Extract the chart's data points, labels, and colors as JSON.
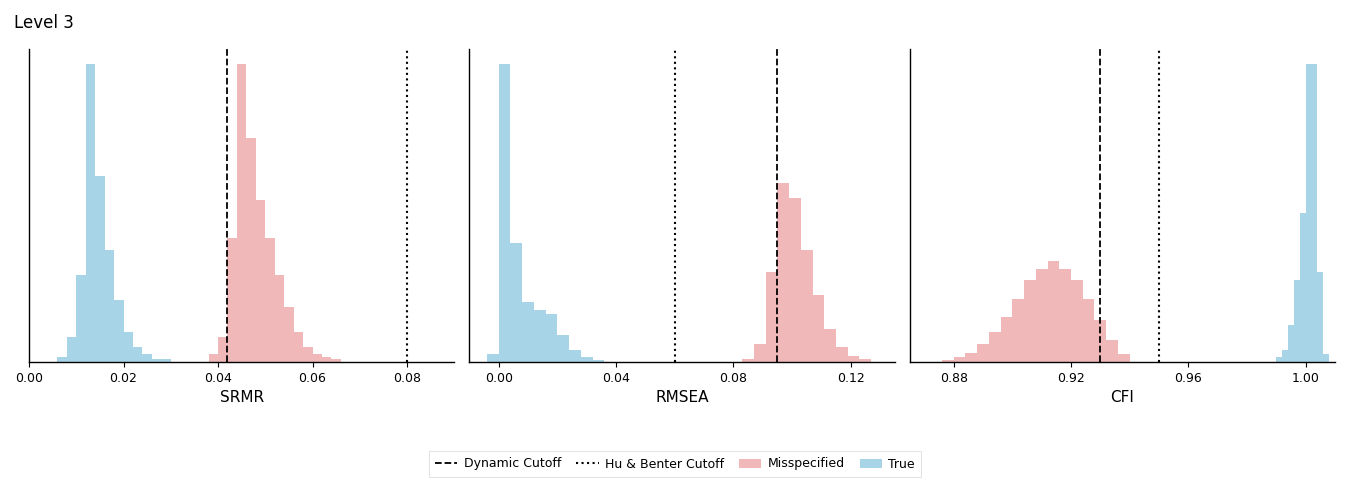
{
  "title": "Level 3",
  "panels": [
    {
      "xlabel": "SRMR",
      "xlim": [
        0.0,
        0.09
      ],
      "xticks": [
        0.0,
        0.02,
        0.04,
        0.06,
        0.08
      ],
      "xticklabels": [
        "0.00",
        "0.02",
        "0.04",
        "0.06",
        "0.08"
      ],
      "dashed_line": 0.042,
      "dotted_line": 0.08,
      "true_bins": [
        0.006,
        0.008,
        0.01,
        0.012,
        0.014,
        0.016,
        0.018,
        0.02,
        0.022,
        0.024,
        0.026,
        0.028,
        0.03
      ],
      "true_heights": [
        2,
        10,
        35,
        120,
        75,
        45,
        25,
        12,
        6,
        3,
        1,
        1,
        0
      ],
      "misspec_bins": [
        0.038,
        0.04,
        0.042,
        0.044,
        0.046,
        0.048,
        0.05,
        0.052,
        0.054,
        0.056,
        0.058,
        0.06,
        0.062,
        0.064,
        0.066
      ],
      "misspec_heights": [
        3,
        10,
        50,
        120,
        90,
        65,
        50,
        35,
        22,
        12,
        6,
        3,
        2,
        1,
        0
      ],
      "bin_width": 0.002
    },
    {
      "xlabel": "RMSEA",
      "xlim": [
        -0.01,
        0.135
      ],
      "xticks": [
        0.0,
        0.04,
        0.08,
        0.12
      ],
      "xticklabels": [
        "0.00",
        "0.04",
        "0.08",
        "0.12"
      ],
      "dashed_line": 0.095,
      "dotted_line": 0.06,
      "true_bins": [
        -0.004,
        0.0,
        0.004,
        0.008,
        0.012,
        0.016,
        0.02,
        0.024,
        0.028,
        0.032
      ],
      "true_heights": [
        5,
        200,
        80,
        40,
        35,
        32,
        18,
        8,
        3,
        1
      ],
      "misspec_bins": [
        0.083,
        0.087,
        0.091,
        0.095,
        0.099,
        0.103,
        0.107,
        0.111,
        0.115,
        0.119,
        0.123,
        0.127
      ],
      "misspec_heights": [
        2,
        12,
        60,
        120,
        110,
        75,
        45,
        22,
        10,
        4,
        2,
        0
      ],
      "bin_width": 0.004
    },
    {
      "xlabel": "CFI",
      "xlim": [
        0.865,
        1.01
      ],
      "xticks": [
        0.88,
        0.92,
        0.96,
        1.0
      ],
      "xticklabels": [
        "0.88",
        "0.92",
        "0.96",
        "1.00"
      ],
      "dashed_line": 0.93,
      "dotted_line": 0.95,
      "true_bins": [
        0.99,
        0.992,
        0.994,
        0.996,
        0.998,
        1.0,
        1.002,
        1.004
      ],
      "true_heights": [
        3,
        8,
        25,
        55,
        100,
        200,
        60,
        5
      ],
      "misspec_bins": [
        0.876,
        0.88,
        0.884,
        0.888,
        0.892,
        0.896,
        0.9,
        0.904,
        0.908,
        0.912,
        0.916,
        0.92,
        0.924,
        0.928,
        0.932,
        0.936
      ],
      "misspec_heights": [
        1,
        3,
        6,
        12,
        20,
        30,
        42,
        55,
        62,
        68,
        62,
        55,
        42,
        28,
        15,
        5
      ],
      "bin_width": 0.004
    }
  ],
  "true_color": "#a8d4e8",
  "misspec_color": "#f0b8b8",
  "background_color": "#ffffff",
  "legend": {
    "dashed_label": "Dynamic Cutoff",
    "dotted_label": "Hu & Benter Cutoff",
    "misspec_label": "Misspecified",
    "true_label": "True"
  }
}
